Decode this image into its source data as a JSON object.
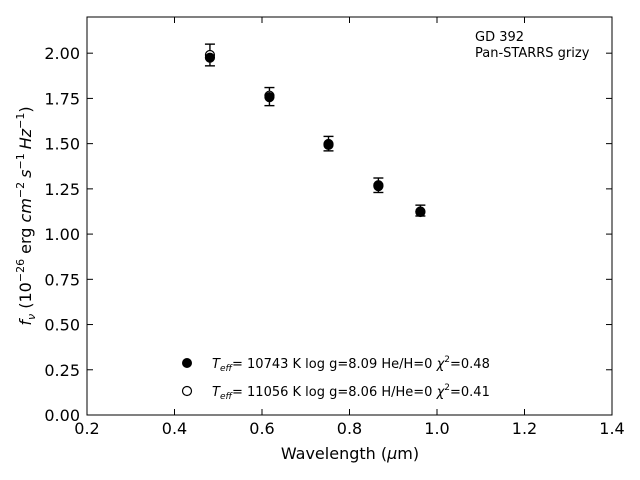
{
  "chart_data": {
    "type": "scatter",
    "title": "",
    "annotation": [
      "GD 392",
      "Pan-STARRS grizy"
    ],
    "xlabel": {
      "text": "Wavelength (",
      "greek": "μ",
      "unit": "m)"
    },
    "ylabel": {
      "f": "f",
      "nu": "ν",
      "open": " (10",
      "exp1": "−26",
      "erg": " erg ",
      "cm": "cm",
      "exp2": "−2",
      "s": "s",
      "exp3": "−1",
      "hz": "Hz",
      "exp4": "−1",
      "close": ")"
    },
    "xlim": [
      0.2,
      1.4
    ],
    "ylim": [
      0.0,
      2.2
    ],
    "xticks": [
      "0.2",
      "0.4",
      "0.6",
      "0.8",
      "1.0",
      "1.2",
      "1.4"
    ],
    "yticks": [
      "0.00",
      "0.25",
      "0.50",
      "0.75",
      "1.00",
      "1.25",
      "1.50",
      "1.75",
      "2.00"
    ],
    "grid": false,
    "legend_position": "bottom-center",
    "observed": {
      "x": [
        0.481,
        0.617,
        0.752,
        0.866,
        0.962
      ],
      "y": [
        1.99,
        1.76,
        1.5,
        1.27,
        1.13
      ],
      "yerr": [
        0.06,
        0.05,
        0.04,
        0.04,
        0.03
      ]
    },
    "series": [
      {
        "marker": "filled",
        "legend": {
          "t": "T",
          "eff": "eff",
          "rest": "= 10743 K  log g=8.09  He/H=0  ",
          "chi": "χ",
          "chi_exp": "2",
          "chi_val": "=0.48"
        },
        "x": [
          0.481,
          0.617,
          0.752,
          0.866,
          0.962
        ],
        "y": [
          1.975,
          1.757,
          1.493,
          1.265,
          1.122
        ]
      },
      {
        "marker": "open",
        "legend": {
          "t": "T",
          "eff": "eff",
          "rest": "= 11056 K  log g=8.06  H/He=0  ",
          "chi": "χ",
          "chi_exp": "2",
          "chi_val": "=0.41"
        },
        "x": [
          0.481,
          0.617,
          0.752,
          0.866,
          0.962
        ],
        "y": [
          1.99,
          1.765,
          1.498,
          1.27,
          1.125
        ]
      }
    ]
  }
}
